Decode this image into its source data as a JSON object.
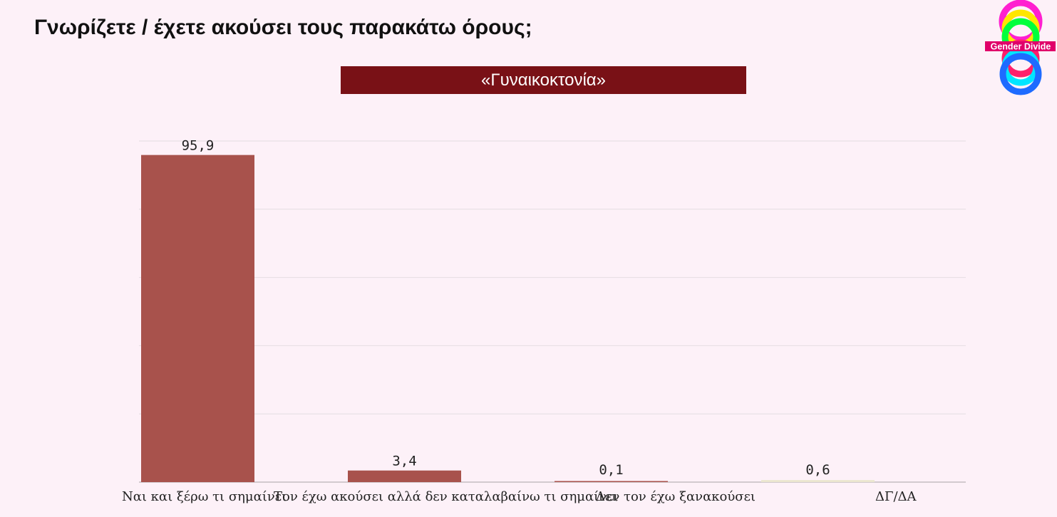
{
  "page": {
    "title": "Γνωρίζετε / έχετε ακούσει τους παρακάτω όρους;",
    "banner": "«Γυναικοκτονία»",
    "logo_text": "Gender Divide"
  },
  "chart_data": {
    "type": "bar",
    "title": "«Γυναικοκτονία»",
    "categories": [
      "Ναι και ξέρω τι σημαίνει",
      "Τον έχω ακούσει αλλά δεν καταλαβαίνω τι σημαίνει",
      "Δεν τον έχω ξανακούσει",
      "ΔΓ/ΔΑ"
    ],
    "values": [
      95.9,
      3.4,
      0.1,
      0.6
    ],
    "value_labels": [
      "95,9",
      "3,4",
      "0,1",
      "0,6"
    ],
    "colors": [
      "#a8524c",
      "#a8524c",
      "#a8524c",
      "#ebe6cf"
    ],
    "ylim": [
      0,
      100
    ],
    "grid": true,
    "xlabel": "",
    "ylabel": ""
  }
}
